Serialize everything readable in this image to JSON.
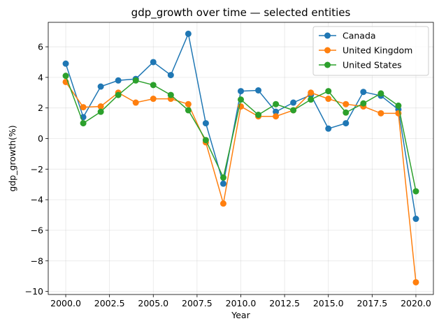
{
  "chart_data": {
    "type": "line",
    "title": "gdp_growth over time — selected entities",
    "xlabel": "Year",
    "ylabel": "gdp_growth(%)",
    "xlim": [
      1999.0,
      2021.0
    ],
    "ylim": [
      -10.2,
      7.6
    ],
    "xticks": [
      2000.0,
      2002.5,
      2005.0,
      2007.5,
      2010.0,
      2012.5,
      2015.0,
      2017.5,
      2020.0
    ],
    "xtick_labels": [
      "2000.0",
      "2002.5",
      "2005.0",
      "2007.5",
      "2010.0",
      "2012.5",
      "2015.0",
      "2017.5",
      "2020.0"
    ],
    "yticks": [
      -10,
      -8,
      -6,
      -4,
      -2,
      0,
      2,
      4,
      6
    ],
    "ytick_labels": [
      "−10",
      "−8",
      "−6",
      "−4",
      "−2",
      "0",
      "2",
      "4",
      "6"
    ],
    "grid": true,
    "legend_position": "top-right",
    "x": [
      2000,
      2001,
      2002,
      2003,
      2004,
      2005,
      2006,
      2007,
      2008,
      2009,
      2010,
      2011,
      2012,
      2013,
      2014,
      2015,
      2016,
      2017,
      2018,
      2019,
      2020
    ],
    "series": [
      {
        "name": "Canada",
        "color": "#1f77b4",
        "values": [
          4.9,
          1.4,
          3.4,
          3.8,
          3.9,
          5.0,
          4.15,
          6.85,
          1.0,
          -2.95,
          3.1,
          3.15,
          1.75,
          2.35,
          2.85,
          0.65,
          1.0,
          3.05,
          2.8,
          1.9,
          -5.25
        ]
      },
      {
        "name": "United Kingdom",
        "color": "#ff7f0e",
        "values": [
          3.7,
          2.05,
          2.1,
          3.0,
          2.35,
          2.6,
          2.6,
          2.25,
          -0.25,
          -4.25,
          2.1,
          1.45,
          1.45,
          1.85,
          3.0,
          2.6,
          2.25,
          2.1,
          1.65,
          1.65,
          -9.4
        ]
      },
      {
        "name": "United States",
        "color": "#2ca02c",
        "values": [
          4.1,
          1.0,
          1.75,
          2.85,
          3.8,
          3.5,
          2.85,
          1.85,
          -0.1,
          -2.55,
          2.55,
          1.55,
          2.25,
          1.85,
          2.55,
          3.1,
          1.7,
          2.3,
          2.95,
          2.15,
          -3.45
        ]
      }
    ]
  }
}
